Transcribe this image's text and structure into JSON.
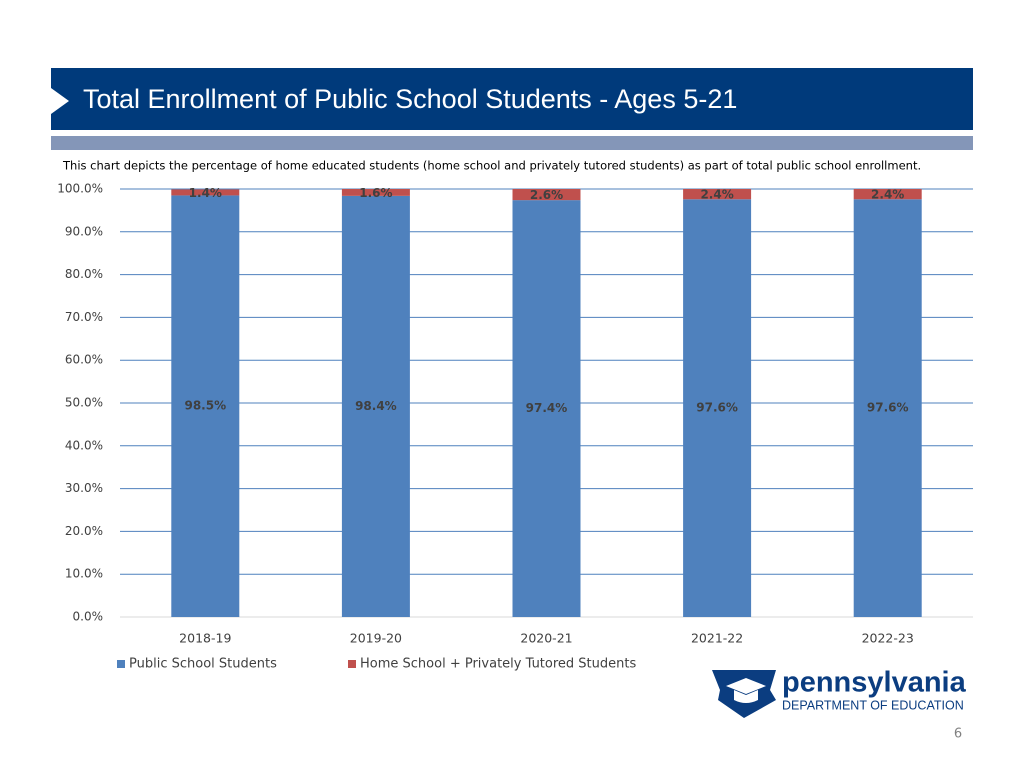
{
  "chart_data": {
    "type": "stacked_bar",
    "title": "Total Enrollment of Public School Students - Ages 5-21",
    "subtitle": "This chart depicts the percentage of home educated students (home school and privately tutored students) as part of total public school enrollment.",
    "categories": [
      "2018-19",
      "2019-20",
      "2020-21",
      "2021-22",
      "2022-23"
    ],
    "series": [
      {
        "name": "Public School Students",
        "color": "#4f81bd",
        "values": [
          98.5,
          98.4,
          97.4,
          97.6,
          97.6
        ],
        "value_labels": [
          "98.5%",
          "98.4%",
          "97.4%",
          "97.6%",
          "97.6%"
        ]
      },
      {
        "name": "Home School + Privately Tutored Students",
        "color": "#c0504d",
        "values": [
          1.4,
          1.6,
          2.6,
          2.4,
          2.4
        ],
        "value_labels": [
          "1.4%",
          "1.6%",
          "2.6%",
          "2.4%",
          "2.4%"
        ]
      }
    ],
    "ylim": [
      0,
      100
    ],
    "yticks": [
      {
        "value": 0,
        "label": "0.0%"
      },
      {
        "value": 10,
        "label": "10.0%"
      },
      {
        "value": 20,
        "label": "20.0%"
      },
      {
        "value": 30,
        "label": "30.0%"
      },
      {
        "value": 40,
        "label": "40.0%"
      },
      {
        "value": 50,
        "label": "50.0%"
      },
      {
        "value": 60,
        "label": "60.0%"
      },
      {
        "value": 70,
        "label": "70.0%"
      },
      {
        "value": 80,
        "label": "80.0%"
      },
      {
        "value": 90,
        "label": "90.0%"
      },
      {
        "value": 100,
        "label": "100.0%"
      }
    ],
    "grid": true,
    "legend": "bottom-left"
  },
  "footer": {
    "logo_name": "pennsylvania",
    "logo_subtitle": "DEPARTMENT OF EDUCATION",
    "page_number": "6"
  }
}
